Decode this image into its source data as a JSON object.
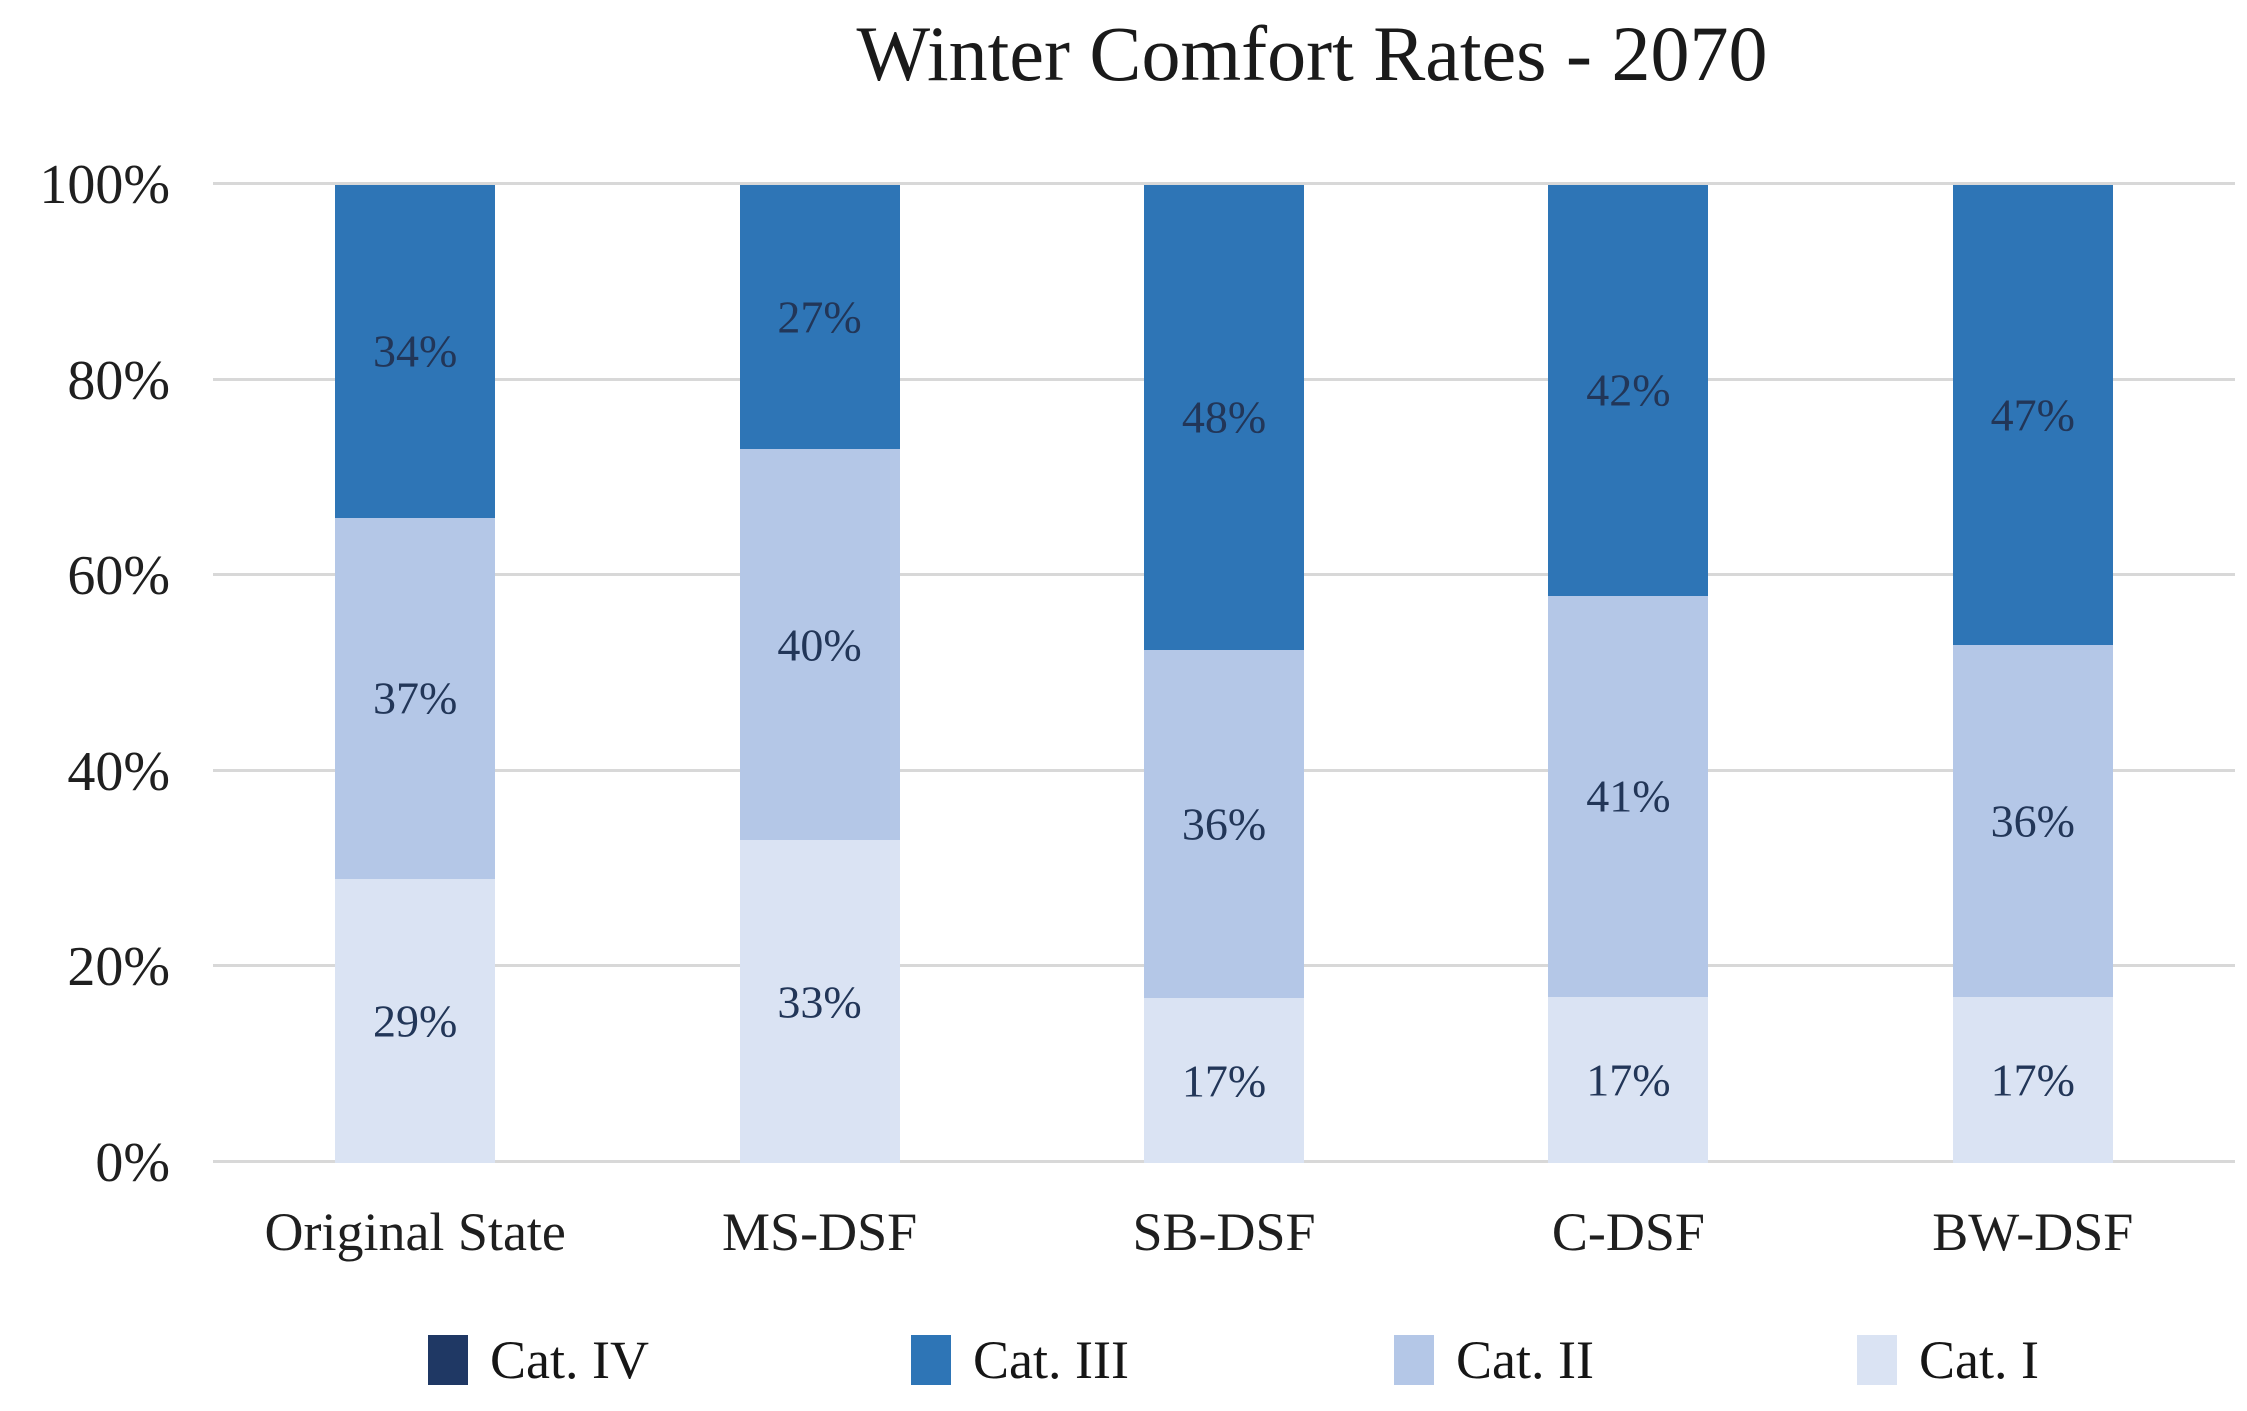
{
  "title": "Winter Comfort Rates - 2070",
  "chart_data": {
    "type": "bar",
    "stacked": true,
    "title": "Winter Comfort Rates - 2070",
    "categories": [
      "Original State",
      "MS-DSF",
      "SB-DSF",
      "C-DSF",
      "BW-DSF"
    ],
    "series_bottom_to_top": [
      {
        "name": "Cat. I",
        "color": "#dae3f3",
        "values": [
          29,
          33,
          17,
          17,
          17
        ]
      },
      {
        "name": "Cat. II",
        "color": "#b4c7e7",
        "values": [
          37,
          40,
          36,
          41,
          36
        ]
      },
      {
        "name": "Cat. III",
        "color": "#2e75b6",
        "values": [
          34,
          27,
          48,
          42,
          47
        ]
      },
      {
        "name": "Cat. IV",
        "color": "#1f3864",
        "values": [
          0,
          0,
          0,
          0,
          0
        ]
      }
    ],
    "data_labels": {
      "suffix": "%",
      "color": "#223658",
      "shown_for_zero_values": false
    },
    "y_axis": {
      "min": 0,
      "max": 100,
      "tick_step": 20,
      "tick_labels": [
        "0%",
        "20%",
        "40%",
        "60%",
        "80%",
        "100%"
      ]
    },
    "x_axis": {
      "tick_labels": [
        "Original State",
        "MS-DSF",
        "SB-DSF",
        "C-DSF",
        "BW-DSF"
      ]
    },
    "legend": {
      "position": "bottom",
      "items": [
        {
          "label": "Cat. IV",
          "color": "#1f3864"
        },
        {
          "label": "Cat. III",
          "color": "#2e75b6"
        },
        {
          "label": "Cat. II",
          "color": "#b4c7e7"
        },
        {
          "label": "Cat. I",
          "color": "#dae3f3"
        }
      ]
    },
    "gridlines": {
      "shown": true,
      "color": "#d8d8d8"
    },
    "background": "#ffffff"
  }
}
